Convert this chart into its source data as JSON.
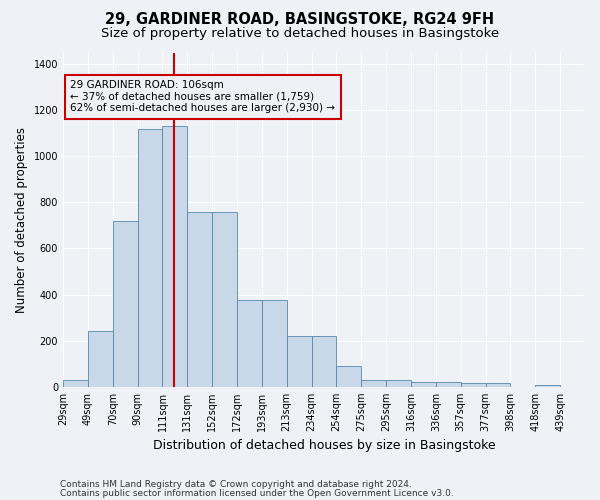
{
  "title": "29, GARDINER ROAD, BASINGSTOKE, RG24 9FH",
  "subtitle": "Size of property relative to detached houses in Basingstoke",
  "xlabel": "Distribution of detached houses by size in Basingstoke",
  "ylabel": "Number of detached properties",
  "footnote1": "Contains HM Land Registry data © Crown copyright and database right 2024.",
  "footnote2": "Contains public sector information licensed under the Open Government Licence v3.0.",
  "property_size_idx": 4,
  "property_label": "29 GARDINER ROAD: 106sqm",
  "annotation_line1": "← 37% of detached houses are smaller (1,759)",
  "annotation_line2": "62% of semi-detached houses are larger (2,930) →",
  "bar_color": "#c8d8e8",
  "bar_edge_color": "#5588aa",
  "vline_color": "#cc0000",
  "annotation_box_color": "#cc0000",
  "bins": [
    "29sqm",
    "49sqm",
    "70sqm",
    "90sqm",
    "111sqm",
    "131sqm",
    "152sqm",
    "172sqm",
    "193sqm",
    "213sqm",
    "234sqm",
    "254sqm",
    "275sqm",
    "295sqm",
    "316sqm",
    "336sqm",
    "357sqm",
    "377sqm",
    "398sqm",
    "418sqm",
    "439sqm"
  ],
  "values": [
    30,
    240,
    720,
    1120,
    1130,
    760,
    760,
    375,
    375,
    220,
    220,
    90,
    30,
    30,
    20,
    20,
    15,
    15,
    0,
    10,
    0
  ],
  "ylim": [
    0,
    1450
  ],
  "yticks": [
    0,
    200,
    400,
    600,
    800,
    1000,
    1200,
    1400
  ],
  "background_color": "#eef2f7",
  "grid_color": "#ffffff",
  "title_fontsize": 10.5,
  "subtitle_fontsize": 9.5,
  "ylabel_fontsize": 8.5,
  "xlabel_fontsize": 9,
  "tick_fontsize": 7,
  "annotation_fontsize": 7.5,
  "footnote_fontsize": 6.5,
  "vline_x_pos": 4.45
}
